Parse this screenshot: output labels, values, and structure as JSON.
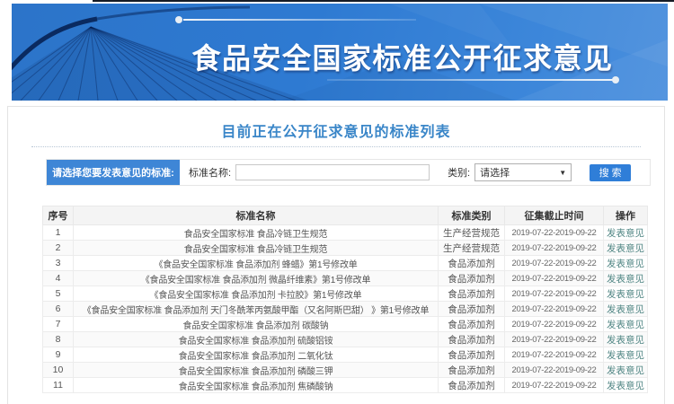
{
  "colors": {
    "accent_blue": "#2f7ed8",
    "prompt_bg": "#3e86d6",
    "section_title_blue": "#3a86c8",
    "action_teal": "#4f8583",
    "banner_gradient_start": "#2c74c9",
    "banner_gradient_end": "#4a8fdd"
  },
  "banner": {
    "title": "食品安全国家标准公开征求意见"
  },
  "section": {
    "title": "目前正在公开征求意见的标准列表"
  },
  "search": {
    "prompt_label": "请选择您要发表意见的标准:",
    "name_label": "标准名称:",
    "name_value": "",
    "category_label": "类别:",
    "category_selected": "请选择",
    "dropdown_arrow": "▼",
    "search_button_label": "搜 索"
  },
  "table": {
    "headers": [
      "序号",
      "标准名称",
      "标准类别",
      "征集截止时间",
      "操作"
    ],
    "rows": [
      {
        "no": "1",
        "name": "食品安全国家标准 食品冷链卫生规范",
        "category": "生产经营规范",
        "period": "2019-07-22-2019-09-22",
        "action": "发表意见"
      },
      {
        "no": "2",
        "name": "食品安全国家标准 食品冷链卫生规范",
        "category": "生产经营规范",
        "period": "2019-07-22-2019-09-22",
        "action": "发表意见"
      },
      {
        "no": "3",
        "name": "《食品安全国家标准 食品添加剂 蜂蜡》第1号修改单",
        "category": "食品添加剂",
        "period": "2019-07-22-2019-09-22",
        "action": "发表意见"
      },
      {
        "no": "4",
        "name": "《食品安全国家标准 食品添加剂 微晶纤维素》第1号修改单",
        "category": "食品添加剂",
        "period": "2019-07-22-2019-09-22",
        "action": "发表意见"
      },
      {
        "no": "5",
        "name": "《食品安全国家标准 食品添加剂 卡拉胶》第1号修改单",
        "category": "食品添加剂",
        "period": "2019-07-22-2019-09-22",
        "action": "发表意见"
      },
      {
        "no": "6",
        "name": "《食品安全国家标准 食品添加剂 天门冬酰苯丙氨酸甲酯（又名阿斯巴甜） 》第1号修改单",
        "category": "食品添加剂",
        "period": "2019-07-22-2019-09-22",
        "action": "发表意见"
      },
      {
        "no": "7",
        "name": "食品安全国家标准 食品添加剂 碳酸钠",
        "category": "食品添加剂",
        "period": "2019-07-22-2019-09-22",
        "action": "发表意见"
      },
      {
        "no": "8",
        "name": "食品安全国家标准 食品添加剂 硫酸铝铵",
        "category": "食品添加剂",
        "period": "2019-07-22-2019-09-22",
        "action": "发表意见"
      },
      {
        "no": "9",
        "name": "食品安全国家标准 食品添加剂 二氧化钛",
        "category": "食品添加剂",
        "period": "2019-07-22-2019-09-22",
        "action": "发表意见"
      },
      {
        "no": "10",
        "name": "食品安全国家标准 食品添加剂 磷酸三钾",
        "category": "食品添加剂",
        "period": "2019-07-22-2019-09-22",
        "action": "发表意见"
      },
      {
        "no": "11",
        "name": "食品安全国家标准 食品添加剂 焦磷酸钠",
        "category": "食品添加剂",
        "period": "2019-07-22-2019-09-22",
        "action": "发表意见"
      }
    ]
  }
}
